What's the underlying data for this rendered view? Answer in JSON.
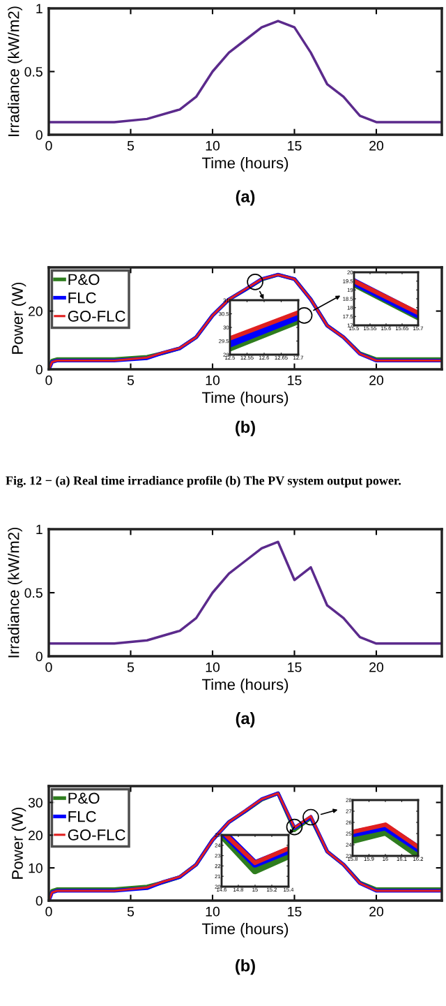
{
  "chart_data": [
    {
      "type": "line",
      "xlabel": "Time (hours)",
      "ylabel": "Irradiance (kW/m2)",
      "annotations": [
        "(a)"
      ],
      "xlim": [
        0,
        24
      ],
      "ylim": [
        0,
        1
      ],
      "xticks": [
        0,
        5,
        10,
        15,
        20
      ],
      "yticks": [
        0,
        0.5,
        1
      ],
      "grid": false,
      "legend": false,
      "series": [
        {
          "color": "#5b2a8c",
          "x": [
            0,
            4,
            6,
            8,
            9,
            10,
            11,
            12,
            13,
            14,
            15,
            16,
            17,
            18,
            19,
            20,
            24
          ],
          "values": [
            0.1,
            0.1,
            0.125,
            0.2,
            0.3,
            0.5,
            0.65,
            0.75,
            0.85,
            0.9,
            0.85,
            0.65,
            0.4,
            0.3,
            0.15,
            0.1,
            0.1
          ]
        }
      ]
    },
    {
      "type": "line",
      "xlabel": "Time (hours)",
      "ylabel": "Power (W)",
      "annotations": [
        "(b)",
        "Fig. 12 − (a) Real time irradiance profile (b) The PV system output power."
      ],
      "xlim": [
        0,
        24
      ],
      "ylim": [
        0,
        35
      ],
      "xticks": [
        0,
        5,
        10,
        15,
        20
      ],
      "yticks": [
        0,
        20
      ],
      "grid": false,
      "legend": "top left",
      "series": [
        {
          "name": "P&O",
          "color": "#2e7d1e",
          "x": [
            0,
            0.2,
            0.5,
            4,
            6,
            7,
            8,
            9,
            10,
            11,
            12,
            13,
            14,
            15,
            16,
            17,
            18,
            19,
            20,
            24
          ],
          "values": [
            0,
            3,
            3.5,
            3.5,
            4.3,
            5.6,
            7.2,
            11,
            18.5,
            24,
            27.3,
            30.8,
            32.5,
            31,
            24,
            15,
            11,
            5.5,
            3.5,
            3.5
          ]
        },
        {
          "name": "FLC",
          "color": "#0000ff",
          "x": [
            0,
            0.2,
            0.5,
            4,
            6,
            7,
            8,
            9,
            10,
            11,
            12,
            13,
            14,
            15,
            16,
            17,
            18,
            19,
            20,
            24
          ],
          "values": [
            0,
            2.5,
            3,
            3,
            3.8,
            5.7,
            7.2,
            11,
            18.5,
            24,
            27.4,
            31,
            32.5,
            31,
            24,
            15,
            11,
            5.3,
            3,
            3
          ]
        },
        {
          "name": "GO-FLC",
          "color": "#e02020",
          "x": [
            0,
            0.2,
            0.5,
            4,
            6,
            7,
            8,
            9,
            10,
            11,
            12,
            13,
            14,
            15,
            16,
            17,
            18,
            19,
            20,
            24
          ],
          "values": [
            0,
            2.5,
            3,
            3,
            4,
            5.8,
            7.3,
            11,
            18.5,
            24,
            27.5,
            31,
            32.5,
            31,
            24,
            15,
            11,
            5.3,
            3,
            3
          ]
        }
      ]
    },
    {
      "type": "line",
      "xlim": [
        12.5,
        12.7
      ],
      "ylim": [
        29,
        31
      ],
      "xticks": [
        12.5,
        12.55,
        12.6,
        12.65,
        12.7
      ],
      "yticks": [
        29,
        29.5,
        30,
        30.5,
        31
      ],
      "grid": false,
      "legend": false,
      "series": [
        {
          "color": "#2e7d1e",
          "x": [
            12.5,
            12.7
          ],
          "values": [
            29.25,
            30.25
          ]
        },
        {
          "color": "#0000ff",
          "x": [
            12.5,
            12.7
          ],
          "values": [
            29.4,
            30.4
          ]
        },
        {
          "color": "#e02020",
          "x": [
            12.5,
            12.7
          ],
          "values": [
            29.6,
            30.55
          ]
        }
      ]
    },
    {
      "type": "line",
      "xlim": [
        15.5,
        15.7
      ],
      "ylim": [
        17,
        20
      ],
      "xticks": [
        15.5,
        15.55,
        15.6,
        15.65,
        15.7
      ],
      "yticks": [
        17,
        17.5,
        18,
        18.5,
        19,
        19.5,
        20
      ],
      "grid": false,
      "legend": false,
      "series": [
        {
          "color": "#2e7d1e",
          "x": [
            15.5,
            15.7
          ],
          "values": [
            19.36,
            17.5
          ]
        },
        {
          "color": "#0000ff",
          "x": [
            15.5,
            15.7
          ],
          "values": [
            19.45,
            17.6
          ]
        },
        {
          "color": "#e02020",
          "x": [
            15.5,
            15.7
          ],
          "values": [
            19.5,
            17.7
          ]
        }
      ]
    },
    {
      "type": "line",
      "xlabel": "Time (hours)",
      "ylabel": "Irradiance (kW/m2)",
      "annotations": [
        "(a)"
      ],
      "xlim": [
        0,
        24
      ],
      "ylim": [
        0,
        1
      ],
      "xticks": [
        0,
        5,
        10,
        15,
        20
      ],
      "yticks": [
        0,
        0.5,
        1
      ],
      "grid": false,
      "legend": false,
      "series": [
        {
          "color": "#5b2a8c",
          "x": [
            0,
            4,
            6,
            8,
            9,
            10,
            11,
            12,
            13,
            14,
            15,
            16,
            17,
            18,
            19,
            20,
            24
          ],
          "values": [
            0.1,
            0.1,
            0.125,
            0.2,
            0.3,
            0.5,
            0.65,
            0.75,
            0.85,
            0.9,
            0.6,
            0.7,
            0.4,
            0.3,
            0.15,
            0.1,
            0.1
          ]
        }
      ]
    },
    {
      "type": "line",
      "xlabel": "Time (hours)",
      "ylabel": "Power (W)",
      "annotations": [
        "(b)"
      ],
      "xlim": [
        0,
        24
      ],
      "ylim": [
        0,
        35
      ],
      "xticks": [
        0,
        5,
        10,
        15,
        20
      ],
      "yticks": [
        0,
        10,
        20,
        30
      ],
      "grid": false,
      "legend": "top left",
      "series": [
        {
          "name": "P&O",
          "color": "#2e7d1e",
          "x": [
            0,
            0.2,
            0.5,
            4,
            6,
            7,
            8,
            9,
            10,
            11,
            12,
            13,
            14,
            15,
            16,
            17,
            18,
            19,
            20,
            24
          ],
          "values": [
            0,
            3,
            3.5,
            3.5,
            4.3,
            5.6,
            7.2,
            11,
            18.5,
            24,
            27.3,
            30.8,
            32.8,
            21.5,
            25.2,
            15,
            11,
            5.5,
            3.5,
            3.5
          ]
        },
        {
          "name": "FLC",
          "color": "#0000ff",
          "x": [
            0,
            0.2,
            0.5,
            4,
            6,
            7,
            8,
            9,
            10,
            11,
            12,
            13,
            14,
            15,
            16,
            17,
            18,
            19,
            20,
            24
          ],
          "values": [
            0,
            2.5,
            3,
            3,
            3.8,
            5.7,
            7.2,
            11,
            18.5,
            24,
            27.4,
            31,
            32.8,
            22.2,
            25.6,
            15,
            11,
            5.3,
            3,
            3
          ]
        },
        {
          "name": "GO-FLC",
          "color": "#e02020",
          "x": [
            0,
            0.2,
            0.5,
            4,
            6,
            7,
            8,
            9,
            10,
            11,
            12,
            13,
            14,
            15,
            16,
            17,
            18,
            19,
            20,
            24
          ],
          "values": [
            0,
            2.5,
            3,
            3,
            4,
            5.8,
            7.3,
            11,
            18.5,
            24,
            27.5,
            31,
            32.8,
            22.3,
            25.8,
            15,
            11,
            5.3,
            3,
            3
          ]
        }
      ]
    },
    {
      "type": "line",
      "xlim": [
        14.6,
        15.4
      ],
      "ylim": [
        20,
        25
      ],
      "xticks": [
        14.6,
        14.8,
        15,
        15.2,
        15.4
      ],
      "yticks": [
        20,
        21,
        22,
        23,
        24,
        25
      ],
      "grid": false,
      "legend": false,
      "series": [
        {
          "color": "#2e7d1e",
          "x": [
            14.6,
            15,
            15.4
          ],
          "values": [
            25,
            21.55,
            23
          ]
        },
        {
          "color": "#0000ff",
          "x": [
            14.65,
            15,
            15.4
          ],
          "values": [
            25,
            22.2,
            23.5
          ]
        },
        {
          "color": "#e02020",
          "x": [
            14.65,
            15,
            15.4
          ],
          "values": [
            25,
            22.3,
            23.7
          ]
        }
      ]
    },
    {
      "type": "line",
      "xlim": [
        15.8,
        16.2
      ],
      "ylim": [
        23,
        28
      ],
      "xticks": [
        15.8,
        15.9,
        16,
        16.1,
        16.2
      ],
      "yticks": [
        23,
        24,
        25,
        26,
        27,
        28
      ],
      "grid": false,
      "legend": false,
      "series": [
        {
          "color": "#2e7d1e",
          "x": [
            15.8,
            16,
            16.2
          ],
          "values": [
            24.4,
            25.15,
            23.1
          ]
        },
        {
          "color": "#0000ff",
          "x": [
            15.8,
            16,
            16.2
          ],
          "values": [
            25,
            25.6,
            23.65
          ]
        },
        {
          "color": "#e02020",
          "x": [
            15.8,
            16,
            16.2
          ],
          "values": [
            25.15,
            25.8,
            23.8
          ]
        }
      ]
    }
  ]
}
